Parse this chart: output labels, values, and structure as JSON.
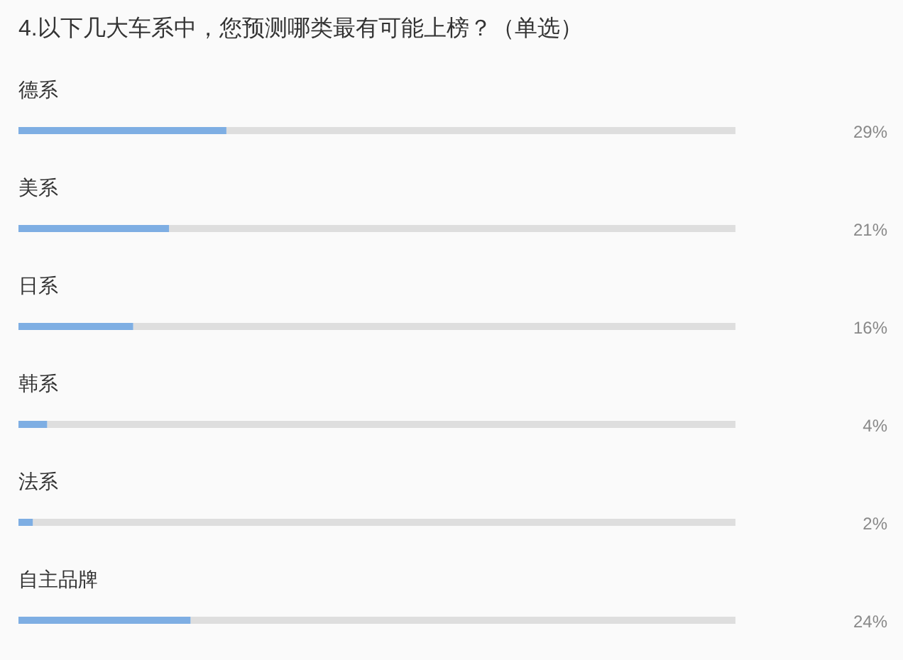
{
  "chart_data": {
    "type": "bar",
    "orientation": "horizontal",
    "title": "4.以下几大车系中，您预测哪类最有可能上榜？（单选）",
    "categories": [
      "德系",
      "美系",
      "日系",
      "韩系",
      "法系",
      "自主品牌"
    ],
    "values": [
      29,
      21,
      16,
      4,
      2,
      24
    ],
    "value_labels": [
      "29%",
      "21%",
      "16%",
      "4%",
      "2%",
      "24%"
    ],
    "color": "#7eaee3",
    "xlim": [
      0,
      100
    ]
  }
}
